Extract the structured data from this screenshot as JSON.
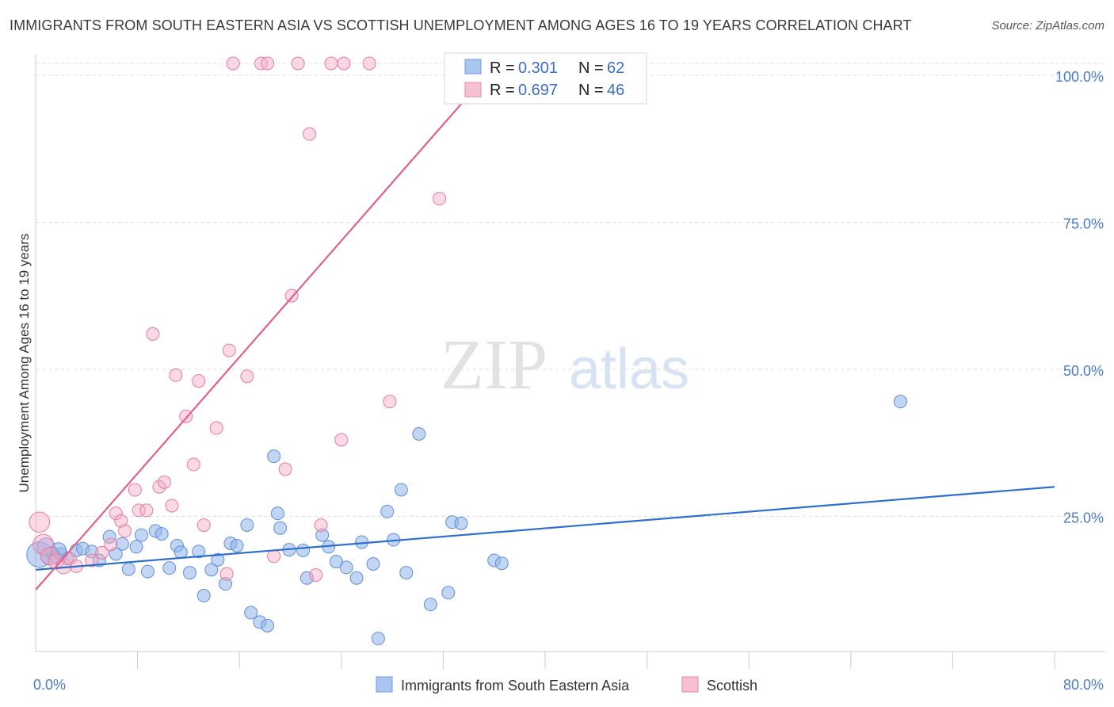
{
  "title": "IMMIGRANTS FROM SOUTH EASTERN ASIA VS SCOTTISH UNEMPLOYMENT AMONG AGES 16 TO 19 YEARS CORRELATION CHART",
  "source": "Source: ZipAtlas.com",
  "watermark": {
    "zip": "ZIP",
    "atlas": "atlas"
  },
  "colors": {
    "blue": "#8fb4ea",
    "blue_stroke": "#5f8fd6",
    "blue_line": "#2d6fcc",
    "pink": "#f4aac4",
    "pink_stroke": "#e8799f",
    "pink_line": "#e0608c",
    "grid": "#dddddd",
    "tick_label": "#4a7cc7"
  },
  "legend_top": {
    "rows": [
      {
        "r_label": "R =",
        "r_value": "0.301",
        "n_label": "N =",
        "n_value": "62"
      },
      {
        "r_label": "R =",
        "r_value": "0.697",
        "n_label": "N =",
        "n_value": "46"
      }
    ]
  },
  "legend_bottom": [
    "Immigrants from South Eastern Asia",
    "Scottish"
  ],
  "chart_data": {
    "type": "scatter",
    "xlabel": "",
    "ylabel": "Unemployment Among Ages 16 to 19 years",
    "xlim": [
      0,
      80
    ],
    "ylim": [
      0,
      100
    ],
    "x_tick_labels": [
      "0.0%",
      "80.0%"
    ],
    "y_tick_labels": [
      "25.0%",
      "50.0%",
      "75.0%",
      "100.0%"
    ],
    "y_ticks": [
      25,
      50,
      75,
      100
    ],
    "grid": true,
    "legend_position": "top-center",
    "series": [
      {
        "name": "Immigrants from South Eastern Asia",
        "trend": {
          "x0": 0,
          "y0": 13.9,
          "x1": 80,
          "y1": 28.0
        },
        "points": [
          [
            0.3,
            16.5,
            20
          ],
          [
            0.8,
            17.8,
            14
          ],
          [
            1.0,
            16.2,
            12
          ],
          [
            1.3,
            16.8,
            10
          ],
          [
            1.6,
            16.0,
            10
          ],
          [
            2.0,
            16.6,
            10
          ],
          [
            2.5,
            15.8,
            10
          ],
          [
            3.2,
            17.2,
            10
          ],
          [
            3.7,
            17.5,
            10
          ],
          [
            4.4,
            17.0,
            10
          ],
          [
            5.0,
            15.5,
            10
          ],
          [
            5.8,
            19.5,
            10
          ],
          [
            6.3,
            16.6,
            10
          ],
          [
            6.8,
            18.3,
            10
          ],
          [
            7.3,
            14.0,
            10
          ],
          [
            7.9,
            17.8,
            10
          ],
          [
            8.3,
            19.8,
            10
          ],
          [
            8.8,
            13.6,
            10
          ],
          [
            9.4,
            20.5,
            10
          ],
          [
            9.9,
            20.0,
            10
          ],
          [
            10.5,
            14.2,
            10
          ],
          [
            11.1,
            18.0,
            10
          ],
          [
            11.4,
            16.9,
            10
          ],
          [
            12.1,
            13.4,
            10
          ],
          [
            12.8,
            17.0,
            10
          ],
          [
            13.2,
            9.5,
            10
          ],
          [
            13.8,
            13.9,
            10
          ],
          [
            14.3,
            15.6,
            10
          ],
          [
            14.9,
            11.5,
            10
          ],
          [
            15.3,
            18.4,
            10
          ],
          [
            15.8,
            18.0,
            10
          ],
          [
            16.6,
            21.5,
            10
          ],
          [
            16.9,
            6.6,
            10
          ],
          [
            17.6,
            5.0,
            10
          ],
          [
            18.2,
            4.4,
            10
          ],
          [
            18.7,
            33.2,
            10
          ],
          [
            19.0,
            23.5,
            10
          ],
          [
            19.2,
            21.0,
            10
          ],
          [
            19.9,
            17.3,
            10
          ],
          [
            21.0,
            17.2,
            10
          ],
          [
            21.3,
            12.5,
            10
          ],
          [
            22.5,
            19.8,
            10
          ],
          [
            23.0,
            17.8,
            10
          ],
          [
            23.6,
            15.3,
            10
          ],
          [
            24.4,
            14.3,
            10
          ],
          [
            25.2,
            12.5,
            10
          ],
          [
            25.6,
            18.6,
            10
          ],
          [
            26.5,
            14.9,
            10
          ],
          [
            26.9,
            2.2,
            10
          ],
          [
            27.6,
            23.8,
            10
          ],
          [
            28.1,
            19.0,
            10
          ],
          [
            28.7,
            27.5,
            10
          ],
          [
            29.1,
            13.4,
            10
          ],
          [
            30.1,
            37.0,
            10
          ],
          [
            31.0,
            8.0,
            10
          ],
          [
            32.4,
            10.0,
            10
          ],
          [
            32.7,
            22.0,
            10
          ],
          [
            33.4,
            21.8,
            10
          ],
          [
            36.0,
            15.5,
            10
          ],
          [
            36.6,
            15.0,
            10
          ],
          [
            67.9,
            42.5,
            10
          ],
          [
            1.8,
            17.2,
            12
          ]
        ]
      },
      {
        "name": "Scottish",
        "trend": {
          "x0": 0,
          "y0": 10.5,
          "x1": 36.2,
          "y1": 100
        },
        "points": [
          [
            0.3,
            22.0,
            16
          ],
          [
            0.6,
            18.2,
            16
          ],
          [
            1.1,
            16.2,
            14
          ],
          [
            1.6,
            15.3,
            12
          ],
          [
            2.2,
            14.5,
            12
          ],
          [
            2.7,
            15.8,
            10
          ],
          [
            3.2,
            14.5,
            10
          ],
          [
            4.4,
            15.5,
            10
          ],
          [
            5.2,
            16.8,
            10
          ],
          [
            5.9,
            18.2,
            10
          ],
          [
            6.3,
            23.5,
            10
          ],
          [
            6.7,
            22.2,
            10
          ],
          [
            7.0,
            20.5,
            10
          ],
          [
            7.8,
            27.5,
            10
          ],
          [
            8.1,
            24.0,
            10
          ],
          [
            8.7,
            24.0,
            10
          ],
          [
            9.2,
            54.0,
            10
          ],
          [
            9.7,
            28.0,
            10
          ],
          [
            10.1,
            28.8,
            10
          ],
          [
            10.7,
            24.8,
            10
          ],
          [
            11.0,
            47.0,
            10
          ],
          [
            11.8,
            40.0,
            10
          ],
          [
            12.4,
            31.8,
            10
          ],
          [
            12.8,
            46.0,
            10
          ],
          [
            13.2,
            21.5,
            10
          ],
          [
            14.2,
            38.0,
            10
          ],
          [
            15.2,
            51.2,
            10
          ],
          [
            15.5,
            100,
            10
          ],
          [
            16.6,
            46.8,
            10
          ],
          [
            17.7,
            100,
            10
          ],
          [
            18.2,
            100,
            10
          ],
          [
            18.7,
            16.2,
            10
          ],
          [
            19.6,
            31.0,
            10
          ],
          [
            20.1,
            60.5,
            10
          ],
          [
            20.6,
            100,
            10
          ],
          [
            21.5,
            88.0,
            10
          ],
          [
            22.0,
            13.0,
            10
          ],
          [
            22.4,
            21.5,
            10
          ],
          [
            23.2,
            100,
            10
          ],
          [
            24.0,
            36.0,
            10
          ],
          [
            24.2,
            100,
            10
          ],
          [
            26.2,
            100,
            10
          ],
          [
            27.8,
            42.5,
            10
          ],
          [
            31.7,
            77.0,
            10
          ],
          [
            36.9,
            100,
            10
          ],
          [
            15.0,
            13.2,
            10
          ]
        ]
      }
    ]
  }
}
